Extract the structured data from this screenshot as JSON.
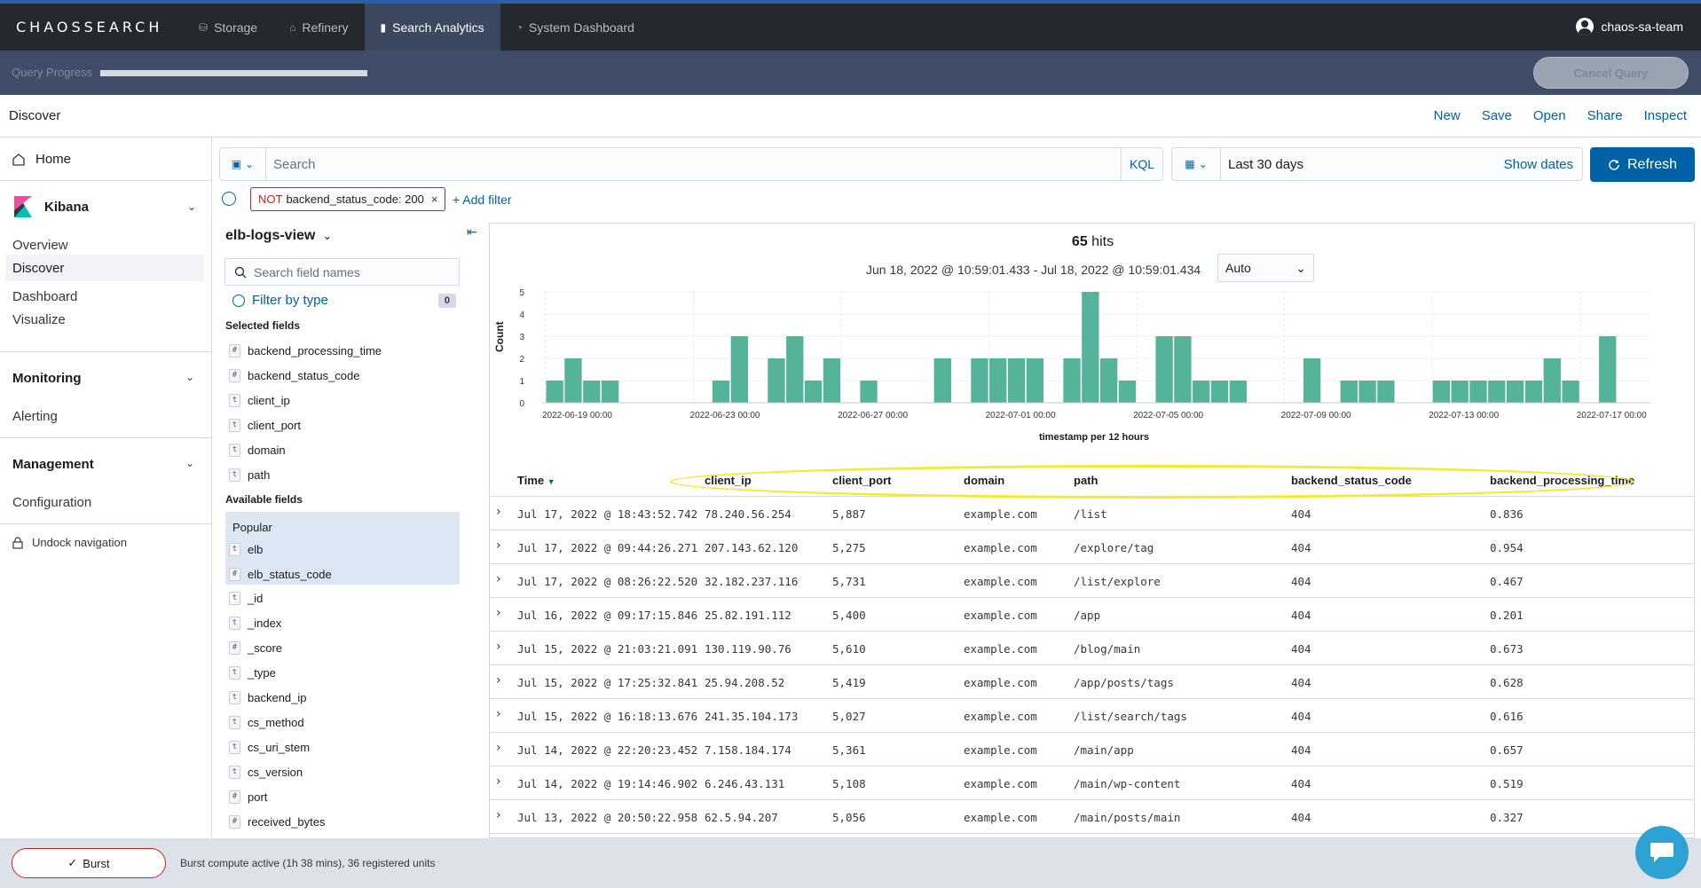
{
  "topnav": {
    "logo": "CHAOSSEARCH",
    "tabs": [
      {
        "label": "Storage",
        "icon": "storage-icon"
      },
      {
        "label": "Refinery",
        "icon": "refinery-icon"
      },
      {
        "label": "Search Analytics",
        "icon": "bar-chart-icon",
        "active": true
      },
      {
        "label": "System Dashboard",
        "icon": "dashboard-icon"
      }
    ],
    "user": "chaos-sa-team"
  },
  "query_progress": {
    "label": "Query Progress",
    "progress": 1.0,
    "cancel_label": "Cancel Query"
  },
  "discover": {
    "title": "Discover",
    "actions": [
      "New",
      "Save",
      "Open",
      "Share",
      "Inspect"
    ]
  },
  "leftnav": {
    "home": "Home",
    "kibana": "Kibana",
    "kibana_items": [
      "Overview",
      "Discover",
      "Dashboard",
      "Visualize"
    ],
    "selected": "Discover",
    "monitoring": "Monitoring",
    "monitoring_items": [
      "Alerting"
    ],
    "management": "Management",
    "management_items": [
      "Configuration"
    ],
    "undock": "Undock navigation"
  },
  "query": {
    "search_placeholder": "Search",
    "language": "KQL",
    "date_range": "Last 30 days",
    "show_dates": "Show dates",
    "refresh": "Refresh"
  },
  "filters": {
    "pill_not": "NOT",
    "pill_text": "backend_status_code: 200",
    "add_filter": "+ Add filter"
  },
  "sidebar": {
    "index_pattern": "elb-logs-view",
    "search_placeholder": "Search field names",
    "filter_by_type": "Filter by type",
    "filter_count": "0",
    "selected_heading": "Selected fields",
    "selected_fields": [
      {
        "type": "#",
        "name": "backend_processing_time"
      },
      {
        "type": "#",
        "name": "backend_status_code"
      },
      {
        "type": "t",
        "name": "client_ip"
      },
      {
        "type": "t",
        "name": "client_port"
      },
      {
        "type": "t",
        "name": "domain"
      },
      {
        "type": "t",
        "name": "path"
      }
    ],
    "available_heading": "Available fields",
    "popular_heading": "Popular",
    "popular_fields": [
      {
        "type": "t",
        "name": "elb"
      },
      {
        "type": "#",
        "name": "elb_status_code"
      }
    ],
    "available_fields": [
      {
        "type": "t",
        "name": "_id"
      },
      {
        "type": "t",
        "name": "_index"
      },
      {
        "type": "#",
        "name": "_score"
      },
      {
        "type": "t",
        "name": "_type"
      },
      {
        "type": "t",
        "name": "backend_ip"
      },
      {
        "type": "t",
        "name": "cs_method"
      },
      {
        "type": "t",
        "name": "cs_uri_stem"
      },
      {
        "type": "t",
        "name": "cs_version"
      },
      {
        "type": "#",
        "name": "port"
      },
      {
        "type": "#",
        "name": "received_bytes"
      }
    ]
  },
  "histogram": {
    "hits_count": "65",
    "hits_label": "hits",
    "time_range": "Jun 18, 2022 @ 10:59:01.433 - Jul 18, 2022 @ 10:59:01.434",
    "interval": "Auto",
    "bar_color": "#54b399"
  },
  "chart_data": {
    "type": "bar",
    "xlabel": "timestamp per 12 hours",
    "ylabel": "Count",
    "ylim": [
      0,
      5
    ],
    "y_ticks": [
      0,
      1,
      2,
      3,
      4,
      5
    ],
    "x_ticks": [
      "2022-06-19 00:00",
      "2022-06-23 00:00",
      "2022-06-27 00:00",
      "2022-07-01 00:00",
      "2022-07-05 00:00",
      "2022-07-09 00:00",
      "2022-07-13 00:00",
      "2022-07-17 00:00"
    ],
    "x_start": "2022-06-19 00:00",
    "bin_hours": 12,
    "values": [
      1,
      2,
      1,
      1,
      0,
      0,
      0,
      0,
      0,
      1,
      3,
      0,
      2,
      3,
      1,
      2,
      0,
      1,
      0,
      0,
      0,
      2,
      0,
      2,
      2,
      2,
      2,
      0,
      2,
      5,
      2,
      1,
      0,
      3,
      3,
      1,
      1,
      1,
      0,
      0,
      0,
      2,
      0,
      1,
      1,
      1,
      0,
      0,
      1,
      1,
      1,
      1,
      1,
      1,
      2,
      1,
      0,
      3
    ]
  },
  "table": {
    "columns": [
      "Time",
      "client_ip",
      "client_port",
      "domain",
      "path",
      "backend_status_code",
      "backend_processing_time"
    ],
    "rows": [
      [
        "Jul 17, 2022 @ 18:43:52.742",
        "78.240.56.254",
        "5,887",
        "example.com",
        "/list",
        "404",
        "0.836"
      ],
      [
        "Jul 17, 2022 @ 09:44:26.271",
        "207.143.62.120",
        "5,275",
        "example.com",
        "/explore/tag",
        "404",
        "0.954"
      ],
      [
        "Jul 17, 2022 @ 08:26:22.520",
        "32.182.237.116",
        "5,731",
        "example.com",
        "/list/explore",
        "404",
        "0.467"
      ],
      [
        "Jul 16, 2022 @ 09:17:15.846",
        "25.82.191.112",
        "5,400",
        "example.com",
        "/app",
        "404",
        "0.201"
      ],
      [
        "Jul 15, 2022 @ 21:03:21.091",
        "130.119.90.76",
        "5,610",
        "example.com",
        "/blog/main",
        "404",
        "0.673"
      ],
      [
        "Jul 15, 2022 @ 17:25:32.841",
        "25.94.208.52",
        "5,419",
        "example.com",
        "/app/posts/tags",
        "404",
        "0.628"
      ],
      [
        "Jul 15, 2022 @ 16:18:13.676",
        "241.35.104.173",
        "5,027",
        "example.com",
        "/list/search/tags",
        "404",
        "0.616"
      ],
      [
        "Jul 14, 2022 @ 22:20:23.452",
        "7.158.184.174",
        "5,361",
        "example.com",
        "/main/app",
        "404",
        "0.657"
      ],
      [
        "Jul 14, 2022 @ 19:14:46.902",
        "6.246.43.131",
        "5,108",
        "example.com",
        "/main/wp-content",
        "404",
        "0.519"
      ],
      [
        "Jul 13, 2022 @ 20:50:22.958",
        "62.5.94.207",
        "5,056",
        "example.com",
        "/main/posts/main",
        "404",
        "0.327"
      ]
    ]
  },
  "bottom": {
    "burst_label": "Burst",
    "burst_status": "Burst compute active (1h 38 mins), 36 registered units"
  }
}
